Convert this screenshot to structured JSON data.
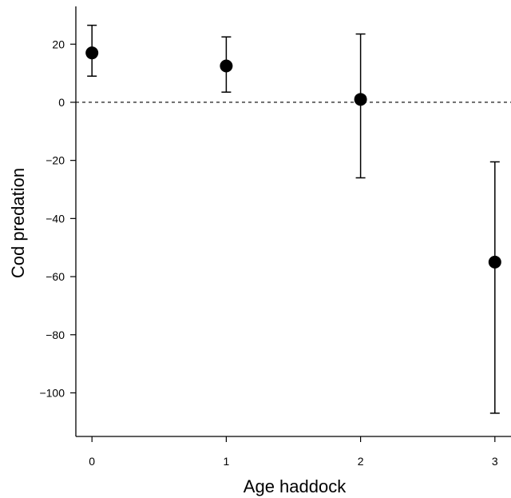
{
  "chart_data": {
    "type": "scatter",
    "xlabel": "Age haddock",
    "ylabel": "Cod predation",
    "x_ticks": [
      "0",
      "1",
      "2",
      "3"
    ],
    "y_ticks": [
      "20",
      "0",
      "-20",
      "-40",
      "-60",
      "-80",
      "-100"
    ],
    "ylim": [
      -115,
      33
    ],
    "xlim": [
      -0.12,
      3.12
    ],
    "reference_line": {
      "y": 0,
      "style": "dashed"
    },
    "grid": false,
    "points": [
      {
        "x": 0,
        "y": 17,
        "lower": 9,
        "upper": 26.5
      },
      {
        "x": 1,
        "y": 12.5,
        "lower": 3.5,
        "upper": 22.5
      },
      {
        "x": 2,
        "y": 1,
        "lower": -26,
        "upper": 23.5
      },
      {
        "x": 3,
        "y": -55,
        "lower": -107,
        "upper": -20.5
      }
    ]
  }
}
